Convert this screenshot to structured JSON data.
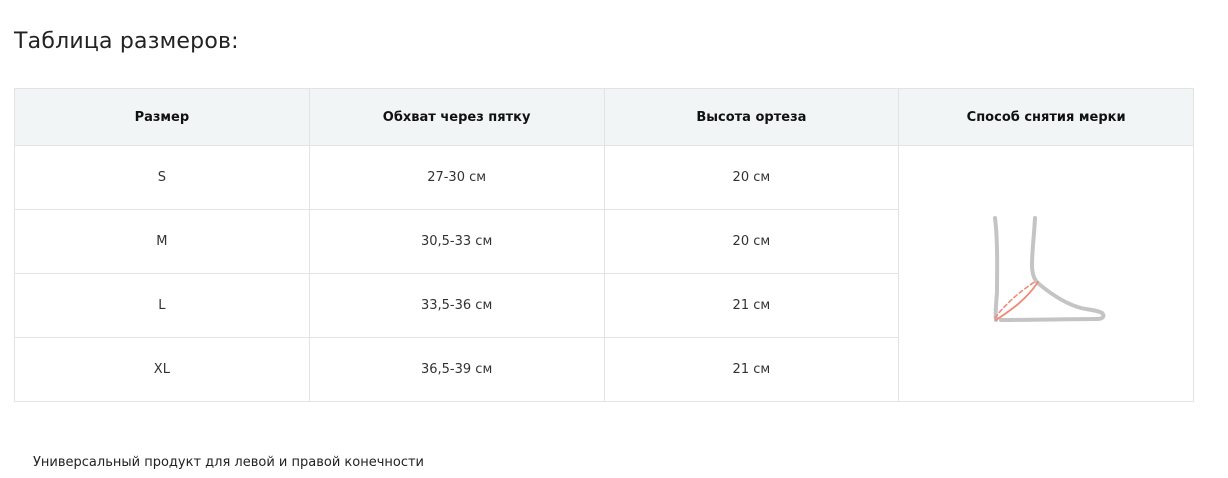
{
  "title": "Таблица размеров:",
  "table": {
    "headers": [
      "Размер",
      "Обхват через пятку",
      "Высота ортеза",
      "Способ снятия мерки"
    ],
    "rows": [
      {
        "size": "S",
        "girth": "27-30 см",
        "height": "20 см"
      },
      {
        "size": "M",
        "girth": "30,5-33 см",
        "height": "20 см"
      },
      {
        "size": "L",
        "girth": "33,5-36 см",
        "height": "21 см"
      },
      {
        "size": "XL",
        "girth": "36,5-39 см",
        "height": "21 см"
      }
    ]
  },
  "illustration": {
    "icon": "foot-measurement-icon",
    "line_color": "#c4c4c4",
    "measure_color": "#f08a78"
  },
  "note": "Универсальный продукт для левой и правой конечности"
}
